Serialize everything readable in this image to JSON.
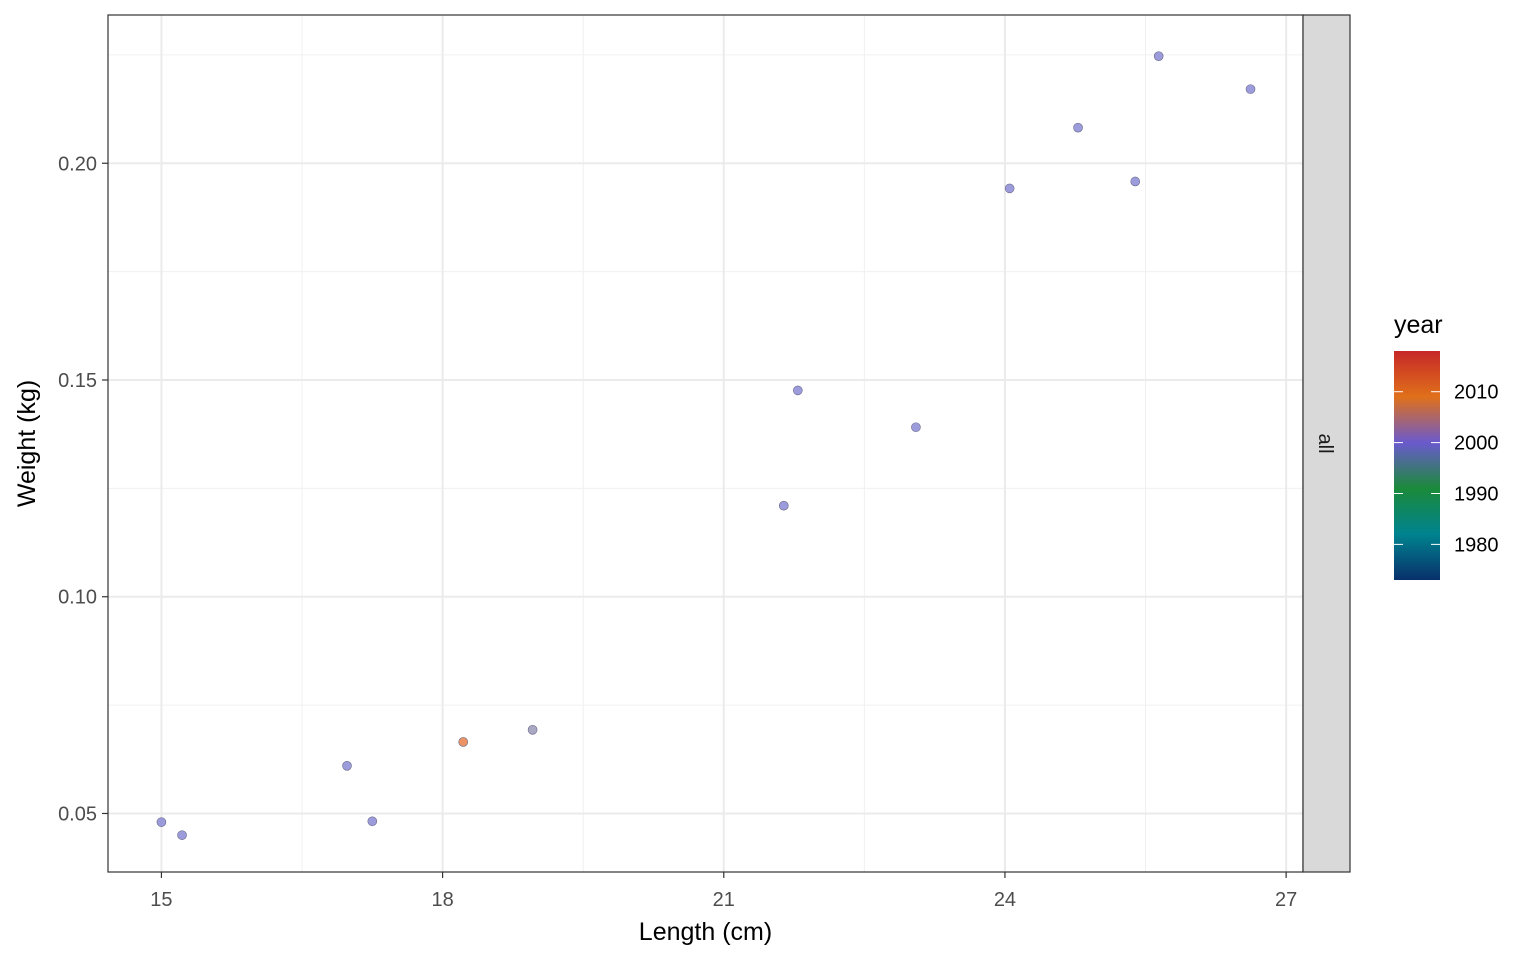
{
  "chart_data": {
    "type": "scatter",
    "title": "",
    "xlabel": "Length (cm)",
    "ylabel": "Weight (kg)",
    "xlim": [
      14.43,
      27.18
    ],
    "ylim": [
      0.0365,
      0.2342
    ],
    "x_ticks": [
      15,
      18,
      21,
      24,
      27
    ],
    "x_tick_labels": [
      "15",
      "18",
      "21",
      "24",
      "27"
    ],
    "y_ticks": [
      0.05,
      0.1,
      0.15,
      0.2
    ],
    "y_tick_labels": [
      "0.05",
      "0.10",
      "0.15",
      "0.20"
    ],
    "grid": true,
    "facet_label": "all",
    "color_scale": {
      "title": "year",
      "range": [
        1973,
        2018
      ],
      "ticks": [
        1980,
        1990,
        2000,
        2010
      ],
      "tick_labels": [
        "1980",
        "1990",
        "2000",
        "2010"
      ],
      "colors": [
        "#08306b",
        "#00838f",
        "#1b8a3a",
        "#6a5acd",
        "#e0701a",
        "#c62828"
      ]
    },
    "points": [
      {
        "x": 15.0,
        "y": 0.048,
        "color": "#8b8bd6"
      },
      {
        "x": 15.22,
        "y": 0.045,
        "color": "#8b8bd6"
      },
      {
        "x": 16.98,
        "y": 0.061,
        "color": "#8b8bd6"
      },
      {
        "x": 17.25,
        "y": 0.0482,
        "color": "#8b8bd6"
      },
      {
        "x": 18.22,
        "y": 0.0665,
        "color": "#e8804a"
      },
      {
        "x": 18.96,
        "y": 0.0693,
        "color": "#9a9ab8"
      },
      {
        "x": 21.64,
        "y": 0.121,
        "color": "#8b8bd6"
      },
      {
        "x": 21.79,
        "y": 0.1476,
        "color": "#8b8bd6"
      },
      {
        "x": 23.05,
        "y": 0.1391,
        "color": "#8b8bd6"
      },
      {
        "x": 24.05,
        "y": 0.1942,
        "color": "#8b8bd6"
      },
      {
        "x": 24.78,
        "y": 0.2082,
        "color": "#8b8bd6"
      },
      {
        "x": 25.39,
        "y": 0.1958,
        "color": "#8b8bd6"
      },
      {
        "x": 25.64,
        "y": 0.2247,
        "color": "#8b8bd6"
      },
      {
        "x": 26.62,
        "y": 0.2171,
        "color": "#8b8bd6"
      }
    ]
  }
}
